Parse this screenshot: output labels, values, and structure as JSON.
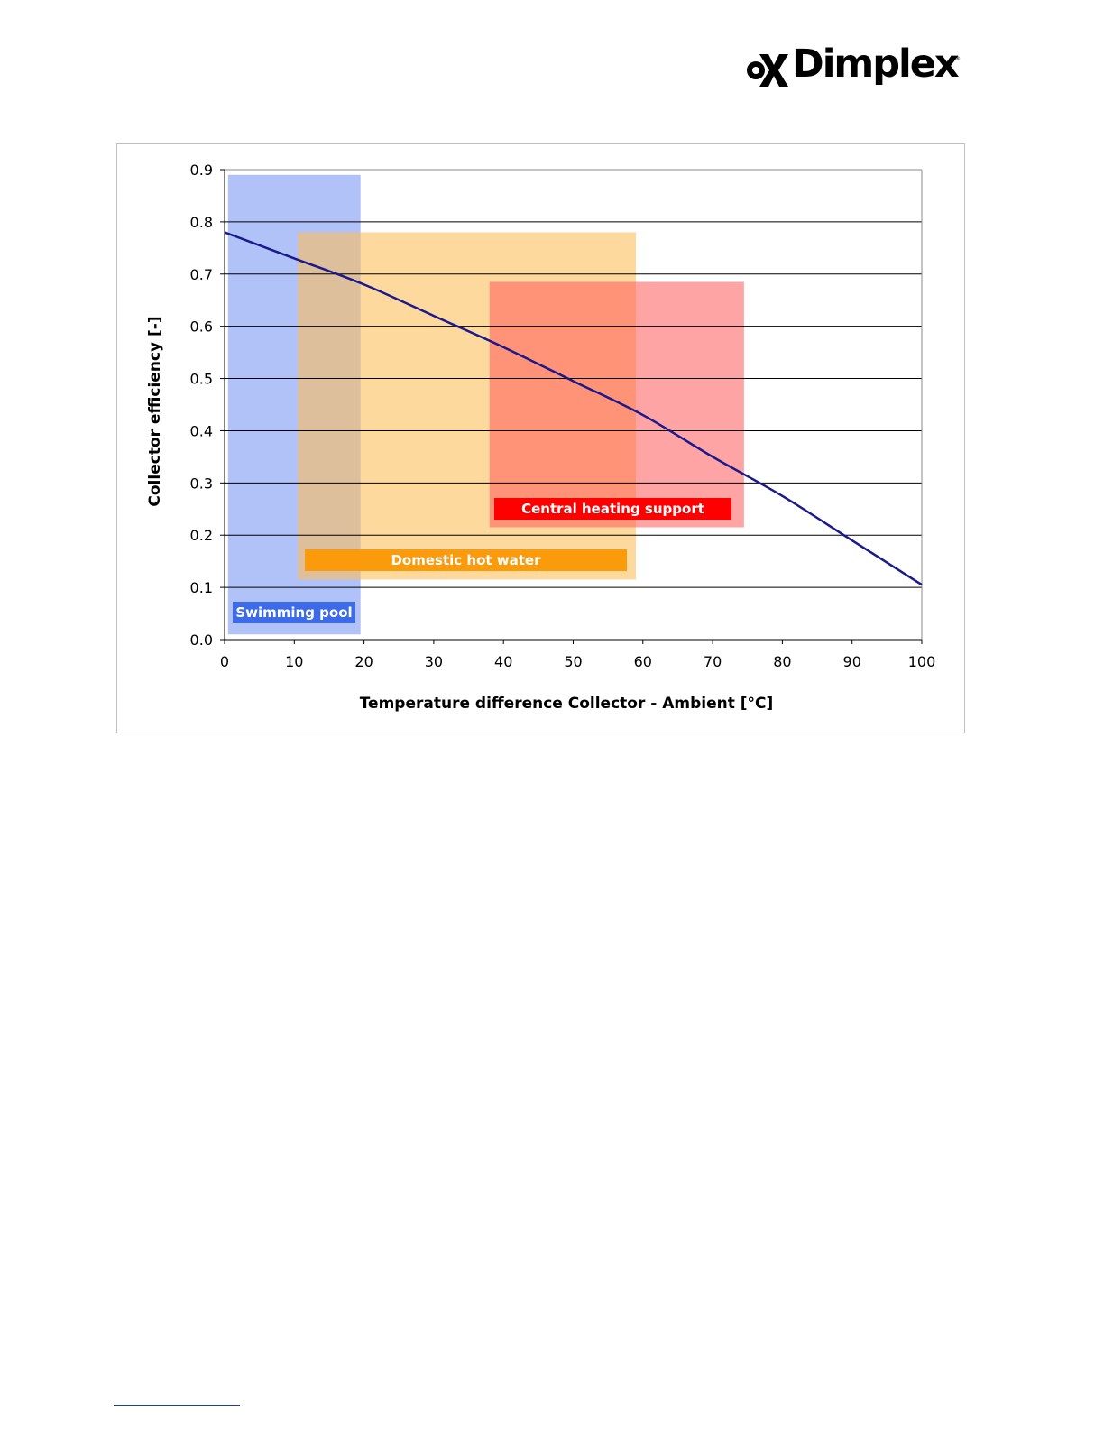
{
  "logo": {
    "text": "Dimplex",
    "tm": "®"
  },
  "colors": {
    "curve": "#1a1a8c",
    "grid": "#000000",
    "pool_band": "#7896f5",
    "pool_label": "#3d6be8",
    "dhw_band": "#fdbe56",
    "dhw_label": "#fb9a0a",
    "heating_band": "#ff5a5a",
    "heating_label": "#ff0000"
  },
  "chart_data": {
    "type": "line",
    "xlabel": "Temperature difference Collector - Ambient [°C]",
    "ylabel": "Collector efficiency [-]",
    "xlim": [
      0,
      100
    ],
    "ylim": [
      0.0,
      0.9
    ],
    "x_ticks": [
      "0",
      "10",
      "20",
      "30",
      "40",
      "50",
      "60",
      "70",
      "80",
      "90",
      "100"
    ],
    "y_ticks": [
      "0.0",
      "0.1",
      "0.2",
      "0.3",
      "0.4",
      "0.5",
      "0.6",
      "0.7",
      "0.8",
      "0.9"
    ],
    "grid": "horizontal",
    "series": [
      {
        "x": [
          0,
          10,
          20,
          30,
          40,
          50,
          60,
          70,
          80,
          90,
          100
        ],
        "y": [
          0.78,
          0.73,
          0.68,
          0.62,
          0.56,
          0.495,
          0.43,
          0.35,
          0.275,
          0.19,
          0.105
        ]
      }
    ],
    "bands": [
      {
        "label": "Swimming pool",
        "x": [
          0.5,
          19.5
        ],
        "y": [
          0.01,
          0.89
        ]
      },
      {
        "label": "Domestic hot water",
        "x": [
          10.5,
          59
        ],
        "y": [
          0.115,
          0.78
        ]
      },
      {
        "label": "Central heating support",
        "x": [
          38,
          74.5
        ],
        "y": [
          0.215,
          0.685
        ]
      }
    ]
  }
}
